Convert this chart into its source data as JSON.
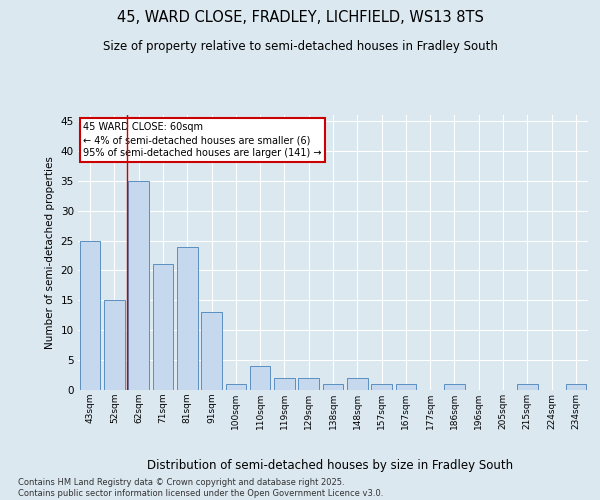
{
  "title1": "45, WARD CLOSE, FRADLEY, LICHFIELD, WS13 8TS",
  "title2": "Size of property relative to semi-detached houses in Fradley South",
  "xlabel": "Distribution of semi-detached houses by size in Fradley South",
  "ylabel": "Number of semi-detached properties",
  "categories": [
    "43sqm",
    "52sqm",
    "62sqm",
    "71sqm",
    "81sqm",
    "91sqm",
    "100sqm",
    "110sqm",
    "119sqm",
    "129sqm",
    "138sqm",
    "148sqm",
    "157sqm",
    "167sqm",
    "177sqm",
    "186sqm",
    "196sqm",
    "205sqm",
    "215sqm",
    "224sqm",
    "234sqm"
  ],
  "values": [
    25,
    15,
    35,
    21,
    24,
    13,
    1,
    4,
    2,
    2,
    1,
    2,
    1,
    1,
    0,
    1,
    0,
    0,
    1,
    0,
    1
  ],
  "bar_color": "#c5d8ed",
  "bar_edge_color": "#5a8fc0",
  "annotation_text": "45 WARD CLOSE: 60sqm\n← 4% of semi-detached houses are smaller (6)\n95% of semi-detached houses are larger (141) →",
  "annotation_box_color": "#ffffff",
  "annotation_box_edge": "#cc0000",
  "vline_color": "#cc0000",
  "ylim": [
    0,
    46
  ],
  "yticks": [
    0,
    5,
    10,
    15,
    20,
    25,
    30,
    35,
    40,
    45
  ],
  "background_color": "#dce8f0",
  "grid_color": "#ffffff",
  "footer": "Contains HM Land Registry data © Crown copyright and database right 2025.\nContains public sector information licensed under the Open Government Licence v3.0."
}
